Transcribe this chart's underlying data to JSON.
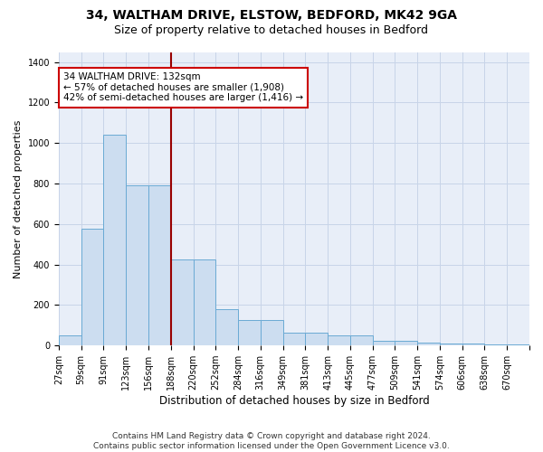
{
  "title1": "34, WALTHAM DRIVE, ELSTOW, BEDFORD, MK42 9GA",
  "title2": "Size of property relative to detached houses in Bedford",
  "xlabel": "Distribution of detached houses by size in Bedford",
  "ylabel": "Number of detached properties",
  "bar_values": [
    50,
    575,
    1040,
    790,
    790,
    425,
    425,
    180,
    125,
    125,
    65,
    65,
    50,
    50,
    25,
    25,
    15,
    10,
    10,
    5,
    5
  ],
  "bin_labels": [
    "27sqm",
    "59sqm",
    "91sqm",
    "123sqm",
    "156sqm",
    "188sqm",
    "220sqm",
    "252sqm",
    "284sqm",
    "316sqm",
    "349sqm",
    "381sqm",
    "413sqm",
    "445sqm",
    "477sqm",
    "509sqm",
    "541sqm",
    "574sqm",
    "606sqm",
    "638sqm",
    "670sqm"
  ],
  "bar_color": "#ccddf0",
  "bar_edgecolor": "#6aaad4",
  "grid_color": "#c8d4e8",
  "background_color": "#e8eef8",
  "vline_position": 5,
  "vline_color": "#990000",
  "annotation_line1": "34 WALTHAM DRIVE: 132sqm",
  "annotation_line2": "← 57% of detached houses are smaller (1,908)",
  "annotation_line3": "42% of semi-detached houses are larger (1,416) →",
  "annotation_box_color": "#ffffff",
  "annotation_border_color": "#cc0000",
  "ylim": [
    0,
    1450
  ],
  "yticks": [
    0,
    200,
    400,
    600,
    800,
    1000,
    1200,
    1400
  ],
  "footnote1": "Contains HM Land Registry data © Crown copyright and database right 2024.",
  "footnote2": "Contains public sector information licensed under the Open Government Licence v3.0.",
  "title1_fontsize": 10,
  "title2_fontsize": 9,
  "xlabel_fontsize": 8.5,
  "ylabel_fontsize": 8,
  "tick_fontsize": 7,
  "annotation_fontsize": 7.5,
  "footnote_fontsize": 6.5
}
